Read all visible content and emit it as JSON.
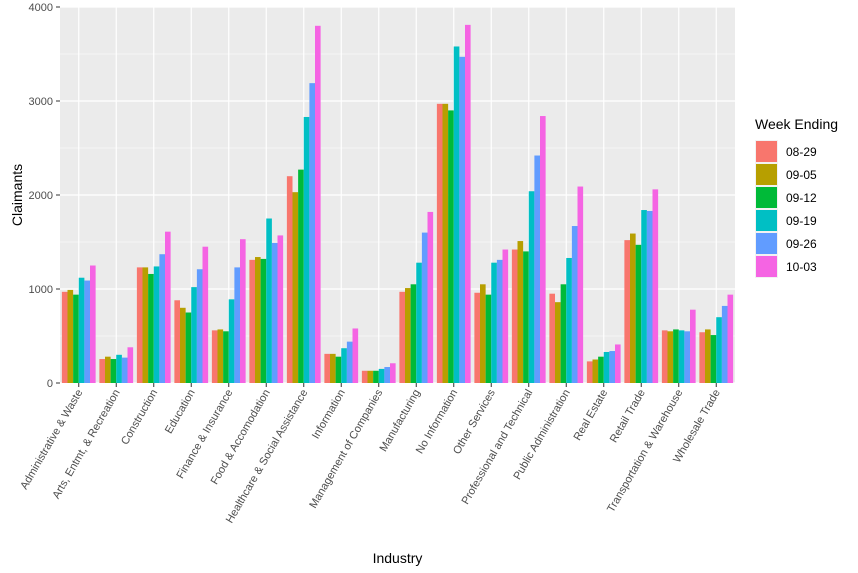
{
  "chart_data": {
    "type": "bar",
    "xlabel": "Industry",
    "ylabel": "Claimants",
    "ylim": [
      0,
      4000
    ],
    "yticks": [
      0,
      1000,
      2000,
      3000,
      4000
    ],
    "grid": true,
    "legend_position": "right",
    "legend_title": "Week Ending",
    "categories": [
      "Administrative & Waste",
      "Arts, Entmt, & Recreation",
      "Construction",
      "Education",
      "Finance & Insurance",
      "Food & Accomodation",
      "Healthcare & Social Assistance",
      "Information",
      "Management of Companies",
      "Manufacturing",
      "No Information",
      "Other Services",
      "Professional and Technical",
      "Public Administration",
      "Real Estate",
      "Retail Trade",
      "Transportation & Warehouse",
      "Wholesale Trade"
    ],
    "series": [
      {
        "name": "08-29",
        "color": "#F8766D",
        "values": [
          970,
          255,
          1230,
          880,
          560,
          1310,
          2200,
          310,
          130,
          970,
          2970,
          960,
          1420,
          950,
          230,
          1520,
          560,
          540
        ]
      },
      {
        "name": "09-05",
        "color": "#B79F00",
        "values": [
          990,
          280,
          1230,
          800,
          570,
          1340,
          2030,
          310,
          130,
          1010,
          2970,
          1050,
          1510,
          860,
          250,
          1590,
          550,
          570
        ]
      },
      {
        "name": "09-12",
        "color": "#00BA38",
        "values": [
          940,
          255,
          1160,
          750,
          550,
          1320,
          2270,
          280,
          130,
          1050,
          2900,
          940,
          1400,
          1050,
          280,
          1470,
          570,
          510
        ]
      },
      {
        "name": "09-19",
        "color": "#00BFC4",
        "values": [
          1120,
          300,
          1240,
          1020,
          890,
          1750,
          2830,
          370,
          150,
          1280,
          3580,
          1280,
          2040,
          1330,
          330,
          1840,
          560,
          700
        ]
      },
      {
        "name": "09-26",
        "color": "#619CFF",
        "values": [
          1090,
          270,
          1370,
          1210,
          1230,
          1490,
          3190,
          440,
          170,
          1600,
          3470,
          1310,
          2420,
          1670,
          340,
          1830,
          550,
          820
        ]
      },
      {
        "name": "10-03",
        "color": "#F564E3",
        "values": [
          1250,
          380,
          1610,
          1450,
          1530,
          1570,
          3800,
          580,
          210,
          1820,
          3810,
          1420,
          2840,
          2090,
          410,
          2060,
          780,
          940
        ]
      }
    ]
  }
}
